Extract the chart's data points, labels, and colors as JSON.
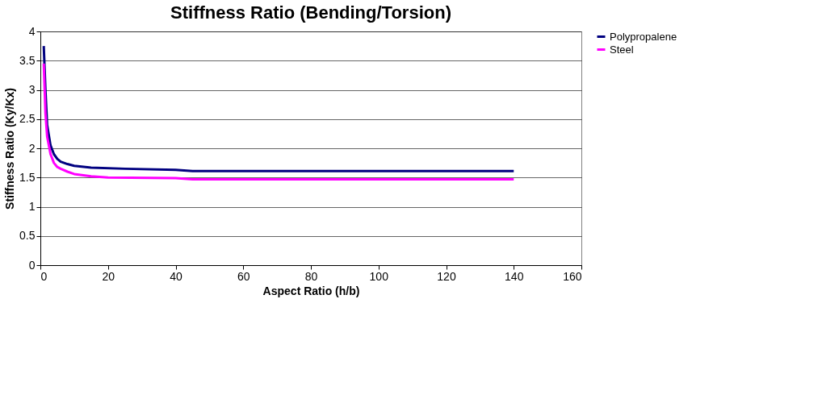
{
  "chart_data": {
    "type": "line",
    "title": "Stiffness Ratio (Bending/Torsion)",
    "xlabel": "Aspect Ratio (h/b)",
    "ylabel": "Stiffness Ratio (Ky/Kx)",
    "xlim": [
      0,
      160
    ],
    "xticks": [
      0,
      20,
      40,
      60,
      80,
      100,
      120,
      140,
      160
    ],
    "ylim": [
      0,
      4
    ],
    "yticks": [
      0,
      0.5,
      1,
      1.5,
      2,
      2.5,
      3,
      3.5,
      4
    ],
    "grid": "y",
    "legend": "right",
    "marker": "none",
    "line_style": "solid",
    "series": [
      {
        "name": "Polypropalene",
        "color": "#000080",
        "x": [
          1,
          1.5,
          2,
          3,
          4,
          5,
          6,
          8,
          10,
          15,
          25,
          40,
          45,
          140
        ],
        "values": [
          3.75,
          3.0,
          2.4,
          2.05,
          1.9,
          1.82,
          1.77,
          1.73,
          1.7,
          1.67,
          1.65,
          1.63,
          1.61,
          1.61
        ]
      },
      {
        "name": "Steel",
        "color": "#ff00ff",
        "x": [
          1,
          1.5,
          2,
          3,
          4,
          5,
          6,
          8,
          10,
          15,
          20,
          40,
          45,
          140
        ],
        "values": [
          3.45,
          2.6,
          2.2,
          1.9,
          1.75,
          1.68,
          1.65,
          1.6,
          1.56,
          1.52,
          1.5,
          1.49,
          1.47,
          1.47
        ]
      }
    ]
  }
}
